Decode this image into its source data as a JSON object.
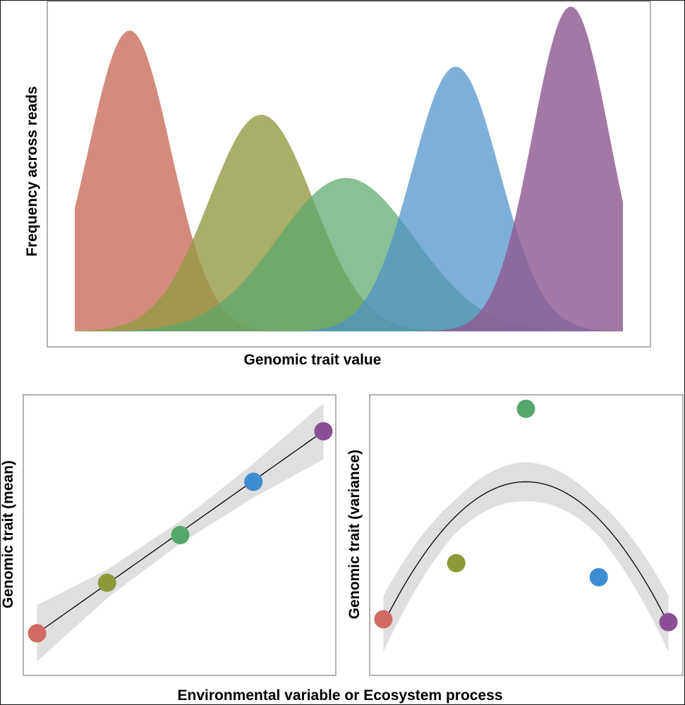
{
  "chart_data": [
    {
      "type": "area",
      "title": "",
      "xlabel": "Genomic trait value",
      "ylabel": "Frequency across reads",
      "xlim": [
        0,
        1
      ],
      "ylim": [
        0,
        1.05
      ],
      "grid": false,
      "legend": "none",
      "series": [
        {
          "name": "red",
          "color": "#CB7262",
          "opacity": 0.82,
          "mean": 0.1,
          "sd": 0.075,
          "peak": 1.0,
          "start": 0.0,
          "end": 1.0
        },
        {
          "name": "olive",
          "color": "#949A42",
          "opacity": 0.8,
          "mean": 0.34,
          "sd": 0.095,
          "peak": 0.72,
          "start": 0.0,
          "end": 1.0
        },
        {
          "name": "green",
          "color": "#5CA86C",
          "opacity": 0.72,
          "mean": 0.495,
          "sd": 0.125,
          "peak": 0.51,
          "start": 0.0,
          "end": 1.0
        },
        {
          "name": "blue",
          "color": "#4C92C8",
          "opacity": 0.72,
          "mean": 0.695,
          "sd": 0.08,
          "peak": 0.88,
          "start": 0.0,
          "end": 1.0
        },
        {
          "name": "purple",
          "color": "#8F5A92",
          "opacity": 0.82,
          "mean": 0.905,
          "sd": 0.07,
          "peak": 1.08,
          "start": 0.0,
          "end": 1.0
        }
      ]
    },
    {
      "type": "scatter",
      "title": "",
      "xlabel": "Environmental variable or Ecosystem process",
      "ylabel": "Genomic trait (mean)",
      "xlim": [
        0,
        1
      ],
      "ylim": [
        0,
        1
      ],
      "grid": false,
      "fit": "linear",
      "points": [
        {
          "x": 0.05,
          "y": 0.15,
          "color": "#D06A62"
        },
        {
          "x": 0.27,
          "y": 0.33,
          "color": "#8E9A3A"
        },
        {
          "x": 0.5,
          "y": 0.5,
          "color": "#55A86C"
        },
        {
          "x": 0.73,
          "y": 0.69,
          "color": "#3E8DD0"
        },
        {
          "x": 0.95,
          "y": 0.87,
          "color": "#8A4F95"
        }
      ],
      "fit_line": [
        {
          "x": 0.05,
          "y": 0.15
        },
        {
          "x": 0.95,
          "y": 0.87
        }
      ],
      "ci_halfwidth": [
        0.1,
        0.05,
        0.04,
        0.06,
        0.1
      ]
    },
    {
      "type": "scatter",
      "title": "",
      "xlabel": "Environmental variable or Ecosystem process",
      "ylabel": "Genomic trait (variance)",
      "xlim": [
        0,
        1
      ],
      "ylim": [
        0,
        1
      ],
      "grid": false,
      "fit": "quadratic",
      "points": [
        {
          "x": 0.05,
          "y": 0.2,
          "color": "#D06A62"
        },
        {
          "x": 0.28,
          "y": 0.4,
          "color": "#8E9A3A"
        },
        {
          "x": 0.5,
          "y": 0.95,
          "color": "#55A86C"
        },
        {
          "x": 0.73,
          "y": 0.35,
          "color": "#3E8DD0"
        },
        {
          "x": 0.95,
          "y": 0.19,
          "color": "#8A4F95"
        }
      ],
      "fit_curve": {
        "vertex_x": 0.5,
        "vertex_y": 0.69,
        "a": -2.5
      },
      "ci_halfwidth": [
        0.1,
        0.06,
        0.07,
        0.06,
        0.1
      ]
    }
  ]
}
